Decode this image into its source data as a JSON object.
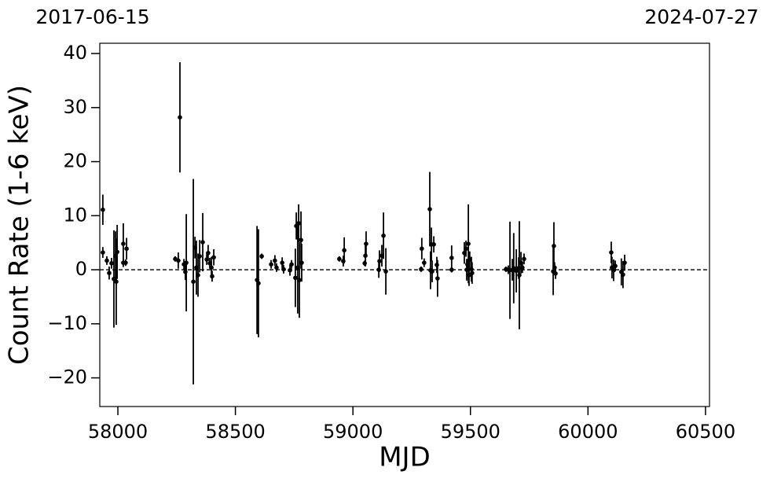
{
  "chart_data": {
    "type": "scatter",
    "xlabel": "MJD",
    "ylabel": "Count Rate (1-6 keV)",
    "top_labels": [
      "2017-06-15",
      "2024-07-27"
    ],
    "color": "#000000",
    "reference_line": 0,
    "xlim": [
      57923,
      60517
    ],
    "ylim": [
      -25.3,
      41.9
    ],
    "xticks": [
      58000,
      58500,
      59000,
      59500,
      60000,
      60500
    ],
    "yticks": [
      {
        "value": -20,
        "label": "−20"
      },
      {
        "value": -10,
        "label": "−10"
      },
      0,
      10,
      20,
      30,
      40
    ],
    "x": [
      57936,
      57936,
      57953,
      57963,
      57973,
      57983,
      57990,
      57993,
      57997,
      58023,
      58023,
      58037,
      58033,
      58244,
      58257,
      58264,
      58281,
      58287,
      58291,
      58321,
      58328,
      58334,
      58341,
      58348,
      58361,
      58378,
      58384,
      58391,
      58398,
      58401,
      58408,
      58592,
      58598,
      58612,
      58652,
      58668,
      58675,
      58699,
      58705,
      58732,
      58739,
      58755,
      58759,
      58765,
      58769,
      58772,
      58779,
      58782,
      58942,
      58959,
      58963,
      59053,
      59056,
      59050,
      59110,
      59113,
      59123,
      59130,
      59140,
      59293,
      59303,
      59290,
      59327,
      59330,
      59334,
      59337,
      59344,
      59357,
      59360,
      59420,
      59420,
      59474,
      59481,
      59484,
      59487,
      59491,
      59494,
      59497,
      59504,
      59507,
      59651,
      59661,
      59668,
      59678,
      59684,
      59695,
      59705,
      59708,
      59715,
      59721,
      59728,
      59855,
      59852,
      59858,
      59862,
      60099,
      60102,
      60109,
      60116,
      60142,
      60149,
      60156
    ],
    "values": [
      11.1,
      3.2,
      1.7,
      -0.6,
      1.2,
      -1.7,
      2.6,
      -2.2,
      3.3,
      1.3,
      4.8,
      3.9,
      1.3,
      2.0,
      1.7,
      28.2,
      1.0,
      -0.4,
      1.3,
      -2.2,
      4.1,
      0.4,
      -1.0,
      2.5,
      5.1,
      1.9,
      3.1,
      1.2,
      0.4,
      -1.2,
      2.3,
      -1.9,
      -2.5,
      2.5,
      1.0,
      1.7,
      0.4,
      1.3,
      0.1,
      -0.1,
      1.0,
      -1.5,
      8.1,
      0.4,
      8.6,
      -1.9,
      5.5,
      1.3,
      2.0,
      1.6,
      3.6,
      2.6,
      4.8,
      1.2,
      0.0,
      1.6,
      2.6,
      6.3,
      -0.3,
      3.9,
      1.3,
      0.1,
      11.2,
      -0.1,
      4.7,
      -0.3,
      4.7,
      0.9,
      -1.6,
      2.2,
      0.0,
      3.1,
      3.9,
      0.0,
      1.0,
      4.8,
      -1.0,
      1.9,
      0.1,
      -0.6,
      0.1,
      0.0,
      -0.1,
      0.0,
      0.3,
      -0.2,
      0.3,
      -1.0,
      1.3,
      0.4,
      2.0,
      4.4,
      -0.3,
      0.4,
      -0.7,
      3.2,
      0.4,
      -0.1,
      0.7,
      -0.4,
      -0.9,
      1.3
    ],
    "errors": [
      2.8,
      1.0,
      0.8,
      1.2,
      1.0,
      9.0,
      4.5,
      8.0,
      5.0,
      0.8,
      3.8,
      2.0,
      0.6,
      0.5,
      1.5,
      10.2,
      1.0,
      1.5,
      9.0,
      19.0,
      2.0,
      5.0,
      4.0,
      3.0,
      5.4,
      1.0,
      1.5,
      1.0,
      2.0,
      1.0,
      1.5,
      10.0,
      10.0,
      0.5,
      0.8,
      1.0,
      0.8,
      1.0,
      0.8,
      1.0,
      0.8,
      5.4,
      2.5,
      8.5,
      3.5,
      7.0,
      5.3,
      3.5,
      0.5,
      1.0,
      2.4,
      2.0,
      2.3,
      0.5,
      1.5,
      2.0,
      2.0,
      4.3,
      4.3,
      2.0,
      0.8,
      0.5,
      6.9,
      3.5,
      3.1,
      2.0,
      1.5,
      1.5,
      3.4,
      2.3,
      0.5,
      2.0,
      1.5,
      2.0,
      1.0,
      7.3,
      2.0,
      1.5,
      2.3,
      2.0,
      0.5,
      0.8,
      9.0,
      2.0,
      6.5,
      4.0,
      2.0,
      10.0,
      2.0,
      1.0,
      1.0,
      4.4,
      4.4,
      1.0,
      1.0,
      2.0,
      2.0,
      2.0,
      1.0,
      2.5,
      2.5,
      1.5
    ]
  }
}
